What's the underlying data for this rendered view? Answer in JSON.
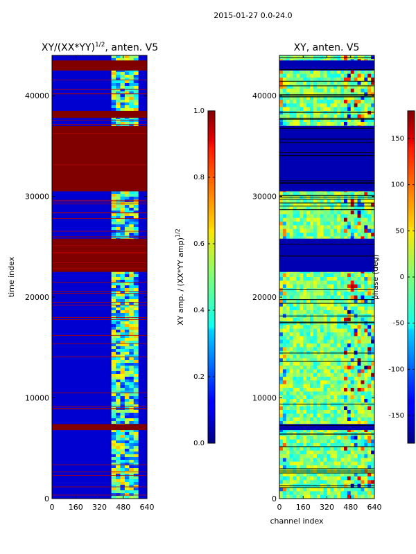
{
  "figure": {
    "suptitle": "2015-01-27 0.0-24.0"
  },
  "chart_data": [
    {
      "type": "heatmap",
      "title": "XY/(XX*YY)",
      "title_sup": "1/2",
      "title_suffix": ", anten. V5",
      "xlabel": "",
      "ylabel": "time index",
      "xlim": [
        0,
        640
      ],
      "ylim": [
        0,
        44000
      ],
      "xticks": [
        "0",
        "160",
        "320",
        "480",
        "640"
      ],
      "yticks": [
        "0",
        "10000",
        "20000",
        "30000",
        "40000"
      ],
      "colorbar": {
        "label": "XY amp. / (XX*YY amp)",
        "label_sup": "1/2",
        "range": [
          0.0,
          1.0
        ],
        "ticks": [
          "0.0",
          "0.2",
          "0.4",
          "0.6",
          "0.8",
          "1.0"
        ],
        "colormap": "jet"
      },
      "background_value": 0.08,
      "saturated_row_bands": [
        [
          37000,
          30500
        ],
        [
          25800,
          22500
        ],
        [
          43500,
          42500
        ],
        [
          38500,
          37800
        ],
        [
          7400,
          6800
        ]
      ],
      "high_signal_channels": [
        400,
        580
      ]
    },
    {
      "type": "heatmap",
      "title": "XY, anten. V5",
      "xlabel": "channel index",
      "ylabel": "",
      "xlim": [
        0,
        640
      ],
      "ylim": [
        0,
        44000
      ],
      "xticks": [
        "0",
        "160",
        "320",
        "480",
        "640"
      ],
      "yticks": [
        "0",
        "10000",
        "20000",
        "30000",
        "40000"
      ],
      "colorbar": {
        "label": "phase (deg)",
        "range": [
          -180,
          180
        ],
        "ticks": [
          "-150",
          "-100",
          "-50",
          "0",
          "50",
          "100",
          "150"
        ],
        "colormap": "jet"
      },
      "flagged_row_bands": [
        [
          37000,
          30500
        ],
        [
          25800,
          22500
        ],
        [
          43500,
          42500
        ],
        [
          7400,
          6800
        ]
      ]
    }
  ]
}
